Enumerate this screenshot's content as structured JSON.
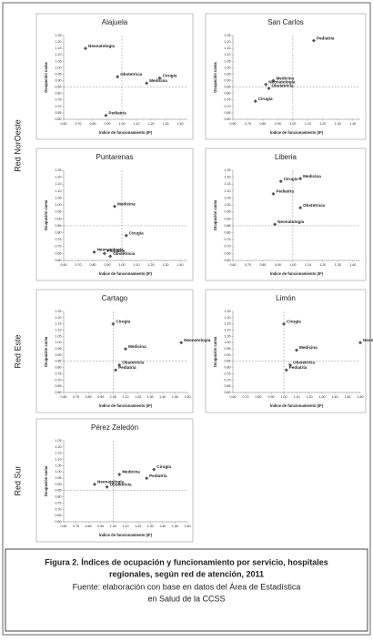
{
  "groups": [
    "Red NorOeste",
    "Red Este",
    "Red Sur"
  ],
  "chart_data": [
    {
      "type": "scatter",
      "title": "Alajuela",
      "x_label": "Índice de funcionamiento (IF)",
      "y_label": "Ocupación cama",
      "xlim": [
        0.6,
        1.45
      ],
      "ylim": [
        0.6,
        1.25
      ],
      "xticks": [
        {
          "value": 0.6,
          "label": "0.60"
        },
        {
          "value": 0.7,
          "label": "0.70"
        },
        {
          "value": 0.8,
          "label": "0.80"
        },
        {
          "value": 0.9,
          "label": "0.90"
        },
        {
          "value": 1.0,
          "label": "1.00"
        },
        {
          "value": 1.1,
          "label": "1.10"
        },
        {
          "value": 1.2,
          "label": "1.20"
        },
        {
          "value": 1.3,
          "label": "1.30"
        },
        {
          "value": 1.4,
          "label": "1.40"
        }
      ],
      "yticks": [
        {
          "value": 0.6,
          "label": "0.60"
        },
        {
          "value": 0.65,
          "label": "0.65"
        },
        {
          "value": 0.7,
          "label": "0.70"
        },
        {
          "value": 0.75,
          "label": "0.75"
        },
        {
          "value": 0.8,
          "label": "0.80"
        },
        {
          "value": 0.85,
          "label": "0.85"
        },
        {
          "value": 0.9,
          "label": "0.90"
        },
        {
          "value": 0.95,
          "label": "0.95"
        },
        {
          "value": 1.0,
          "label": "1.00"
        },
        {
          "value": 1.05,
          "label": "1.05"
        },
        {
          "value": 1.1,
          "label": "1.10"
        },
        {
          "value": 1.15,
          "label": "1.15"
        },
        {
          "value": 1.2,
          "label": "1.20"
        },
        {
          "value": 1.25,
          "label": "1.25"
        }
      ],
      "reference_x": 1.0,
      "reference_y": 0.85,
      "color": "#555555",
      "labels": [
        "Neonatología",
        "Obstetricia",
        "Medicina",
        "Cirugía",
        "Pediatría"
      ],
      "x": [
        0.75,
        0.97,
        1.17,
        1.26,
        0.89
      ],
      "values": [
        1.15,
        0.93,
        0.88,
        0.92,
        0.63
      ]
    },
    {
      "type": "scatter",
      "title": "San Carlos",
      "x_label": "Índice de funcionamiento (IF)",
      "y_label": "Ocupación cama",
      "xlim": [
        0.6,
        1.45
      ],
      "ylim": [
        0.6,
        1.25
      ],
      "xticks": [
        {
          "value": 0.6,
          "label": "0.60"
        },
        {
          "value": 0.7,
          "label": "0.70"
        },
        {
          "value": 0.8,
          "label": "0.80"
        },
        {
          "value": 0.9,
          "label": "0.90"
        },
        {
          "value": 1.0,
          "label": "1.00"
        },
        {
          "value": 1.1,
          "label": "1.10"
        },
        {
          "value": 1.2,
          "label": "1.20"
        },
        {
          "value": 1.3,
          "label": "1.30"
        },
        {
          "value": 1.4,
          "label": "1.40"
        }
      ],
      "yticks": [
        {
          "value": 0.6,
          "label": "0.60"
        },
        {
          "value": 0.65,
          "label": "0.65"
        },
        {
          "value": 0.7,
          "label": "0.70"
        },
        {
          "value": 0.75,
          "label": "0.75"
        },
        {
          "value": 0.8,
          "label": "0.80"
        },
        {
          "value": 0.85,
          "label": "0.85"
        },
        {
          "value": 0.9,
          "label": "0.90"
        },
        {
          "value": 0.95,
          "label": "0.95"
        },
        {
          "value": 1.0,
          "label": "1.00"
        },
        {
          "value": 1.05,
          "label": "1.05"
        },
        {
          "value": 1.1,
          "label": "1.10"
        },
        {
          "value": 1.15,
          "label": "1.15"
        },
        {
          "value": 1.2,
          "label": "1.20"
        },
        {
          "value": 1.25,
          "label": "1.25"
        }
      ],
      "reference_x": 1.0,
      "reference_y": 0.85,
      "color": "#555555",
      "labels": [
        "Pediatría",
        "Medicina",
        "Neonatología",
        "Obstetricia",
        "Cirugía"
      ],
      "x": [
        1.14,
        0.87,
        0.82,
        0.84,
        0.75
      ],
      "values": [
        1.21,
        0.9,
        0.87,
        0.84,
        0.74
      ]
    },
    {
      "type": "scatter",
      "title": "Puntarenas",
      "x_label": "Índice de funcionamiento (IF)",
      "y_label": "Ocupación cama",
      "xlim": [
        0.6,
        1.45
      ],
      "ylim": [
        0.6,
        1.25
      ],
      "xticks": [
        {
          "value": 0.6,
          "label": "0.60"
        },
        {
          "value": 0.7,
          "label": "0.70"
        },
        {
          "value": 0.8,
          "label": "0.80"
        },
        {
          "value": 0.9,
          "label": "0.90"
        },
        {
          "value": 1.0,
          "label": "1.00"
        },
        {
          "value": 1.1,
          "label": "1.10"
        },
        {
          "value": 1.2,
          "label": "1.20"
        },
        {
          "value": 1.3,
          "label": "1.30"
        },
        {
          "value": 1.4,
          "label": "1.40"
        }
      ],
      "yticks": [
        {
          "value": 0.6,
          "label": "0.60"
        },
        {
          "value": 0.65,
          "label": "0.65"
        },
        {
          "value": 0.7,
          "label": "0.70"
        },
        {
          "value": 0.75,
          "label": "0.75"
        },
        {
          "value": 0.8,
          "label": "0.80"
        },
        {
          "value": 0.85,
          "label": "0.85"
        },
        {
          "value": 0.9,
          "label": "0.90"
        },
        {
          "value": 0.95,
          "label": "0.95"
        },
        {
          "value": 1.0,
          "label": "1.00"
        },
        {
          "value": 1.05,
          "label": "1.05"
        },
        {
          "value": 1.1,
          "label": "1.10"
        },
        {
          "value": 1.15,
          "label": "1.15"
        },
        {
          "value": 1.2,
          "label": "1.20"
        },
        {
          "value": 1.25,
          "label": "1.25"
        }
      ],
      "reference_x": 1.0,
      "reference_y": 0.85,
      "color": "#555555",
      "labels": [
        "Medicina",
        "Cirugía",
        "Neonatología",
        "Pediatría",
        "Obstetricia"
      ],
      "x": [
        0.95,
        1.03,
        0.81,
        0.88,
        0.92
      ],
      "values": [
        0.99,
        0.78,
        0.66,
        0.65,
        0.63
      ]
    },
    {
      "type": "scatter",
      "title": "Liberia",
      "x_label": "Índice de funcionamiento (IF)",
      "y_label": "Ocupación cama",
      "xlim": [
        0.6,
        1.45
      ],
      "ylim": [
        0.6,
        1.25
      ],
      "xticks": [
        {
          "value": 0.6,
          "label": "0.60"
        },
        {
          "value": 0.7,
          "label": "0.70"
        },
        {
          "value": 0.8,
          "label": "0.80"
        },
        {
          "value": 0.9,
          "label": "0.90"
        },
        {
          "value": 1.0,
          "label": "1.00"
        },
        {
          "value": 1.1,
          "label": "1.10"
        },
        {
          "value": 1.2,
          "label": "1.20"
        },
        {
          "value": 1.3,
          "label": "1.30"
        },
        {
          "value": 1.4,
          "label": "1.40"
        }
      ],
      "yticks": [
        {
          "value": 0.6,
          "label": "0.60"
        },
        {
          "value": 0.65,
          "label": "0.65"
        },
        {
          "value": 0.7,
          "label": "0.70"
        },
        {
          "value": 0.75,
          "label": "0.75"
        },
        {
          "value": 0.8,
          "label": "0.80"
        },
        {
          "value": 0.85,
          "label": "0.85"
        },
        {
          "value": 0.9,
          "label": "0.90"
        },
        {
          "value": 0.95,
          "label": "0.95"
        },
        {
          "value": 1.0,
          "label": "1.00"
        },
        {
          "value": 1.05,
          "label": "1.05"
        },
        {
          "value": 1.1,
          "label": "1.10"
        },
        {
          "value": 1.15,
          "label": "1.15"
        },
        {
          "value": 1.2,
          "label": "1.20"
        },
        {
          "value": 1.25,
          "label": "1.25"
        }
      ],
      "reference_x": 1.0,
      "reference_y": 0.85,
      "color": "#555555",
      "labels": [
        "Medicina",
        "Cirugía",
        "Pediatría",
        "Obstetricia",
        "Neonatología"
      ],
      "x": [
        1.05,
        0.92,
        0.87,
        1.05,
        0.88
      ],
      "values": [
        1.19,
        1.17,
        1.08,
        0.98,
        0.86
      ]
    },
    {
      "type": "scatter",
      "title": "Cartago",
      "x_label": "Índice de funcionamiento (IF)",
      "y_label": "Ocupación cama",
      "xlim": [
        0.6,
        1.6
      ],
      "ylim": [
        0.6,
        1.25
      ],
      "xticks": [
        {
          "value": 0.6,
          "label": "0.60"
        },
        {
          "value": 0.7,
          "label": "0.70"
        },
        {
          "value": 0.8,
          "label": "0.80"
        },
        {
          "value": 0.9,
          "label": "0.90"
        },
        {
          "value": 1.0,
          "label": "1.00"
        },
        {
          "value": 1.1,
          "label": "1.10"
        },
        {
          "value": 1.2,
          "label": "1.20"
        },
        {
          "value": 1.3,
          "label": "1.30"
        },
        {
          "value": 1.4,
          "label": "1.40"
        },
        {
          "value": 1.5,
          "label": "1.50"
        },
        {
          "value": 1.6,
          "label": "1.60"
        }
      ],
      "yticks": [
        {
          "value": 0.6,
          "label": "0.60"
        },
        {
          "value": 0.65,
          "label": "0.65"
        },
        {
          "value": 0.7,
          "label": "0.70"
        },
        {
          "value": 0.75,
          "label": "0.75"
        },
        {
          "value": 0.8,
          "label": "0.80"
        },
        {
          "value": 0.85,
          "label": "0.85"
        },
        {
          "value": 0.9,
          "label": "0.90"
        },
        {
          "value": 0.95,
          "label": "0.95"
        },
        {
          "value": 1.0,
          "label": "1.00"
        },
        {
          "value": 1.05,
          "label": "1.05"
        },
        {
          "value": 1.1,
          "label": "1.10"
        },
        {
          "value": 1.15,
          "label": "1.15"
        },
        {
          "value": 1.2,
          "label": "1.20"
        },
        {
          "value": 1.25,
          "label": "1.25"
        }
      ],
      "reference_x": 1.0,
      "reference_y": 0.85,
      "color": "#555555",
      "labels": [
        "Cirugía",
        "Neonatología",
        "Medicina",
        "Obstetricia",
        "Pediatría"
      ],
      "x": [
        1.0,
        1.55,
        1.1,
        1.05,
        1.02
      ],
      "values": [
        1.15,
        1.0,
        0.95,
        0.82,
        0.78
      ]
    },
    {
      "type": "scatter",
      "title": "Limón",
      "x_label": "Índice de funcionamiento (IF)",
      "y_label": "Ocupación cama",
      "xlim": [
        0.6,
        1.6
      ],
      "ylim": [
        0.6,
        1.25
      ],
      "xticks": [
        {
          "value": 0.6,
          "label": "0.60"
        },
        {
          "value": 0.7,
          "label": "0.70"
        },
        {
          "value": 0.8,
          "label": "0.80"
        },
        {
          "value": 0.9,
          "label": "0.90"
        },
        {
          "value": 1.0,
          "label": "1.00"
        },
        {
          "value": 1.1,
          "label": "1.10"
        },
        {
          "value": 1.2,
          "label": "1.20"
        },
        {
          "value": 1.3,
          "label": "1.30"
        },
        {
          "value": 1.4,
          "label": "1.40"
        },
        {
          "value": 1.5,
          "label": "1.50"
        },
        {
          "value": 1.6,
          "label": "1.60"
        }
      ],
      "yticks": [
        {
          "value": 0.6,
          "label": "0.60"
        },
        {
          "value": 0.65,
          "label": "0.65"
        },
        {
          "value": 0.7,
          "label": "0.70"
        },
        {
          "value": 0.75,
          "label": "0.75"
        },
        {
          "value": 0.8,
          "label": "0.80"
        },
        {
          "value": 0.85,
          "label": "0.85"
        },
        {
          "value": 0.9,
          "label": "0.90"
        },
        {
          "value": 0.95,
          "label": "0.95"
        },
        {
          "value": 1.0,
          "label": "1.00"
        },
        {
          "value": 1.05,
          "label": "1.05"
        },
        {
          "value": 1.1,
          "label": "1.10"
        },
        {
          "value": 1.15,
          "label": "1.15"
        },
        {
          "value": 1.2,
          "label": "1.20"
        },
        {
          "value": 1.25,
          "label": "1.25"
        }
      ],
      "reference_x": 1.0,
      "reference_y": 0.85,
      "color": "#555555",
      "labels": [
        "Cirugía",
        "Neonatología",
        "Medicina",
        "Obstetricia",
        "Pediatría"
      ],
      "x": [
        1.0,
        1.6,
        1.1,
        1.05,
        1.02
      ],
      "values": [
        1.15,
        1.0,
        0.94,
        0.82,
        0.78
      ]
    },
    {
      "type": "scatter",
      "title": "Pérez Zeledón",
      "x_label": "Índice de funcionamiento (IF)",
      "y_label": "Ocupación cama",
      "xlim": [
        0.6,
        1.6
      ],
      "ylim": [
        0.6,
        1.25
      ],
      "xticks": [
        {
          "value": 0.6,
          "label": "0.60"
        },
        {
          "value": 0.7,
          "label": "0.70"
        },
        {
          "value": 0.8,
          "label": "0.80"
        },
        {
          "value": 0.9,
          "label": "0.90"
        },
        {
          "value": 1.0,
          "label": "1.00"
        },
        {
          "value": 1.1,
          "label": "1.10"
        },
        {
          "value": 1.2,
          "label": "1.20"
        },
        {
          "value": 1.3,
          "label": "1.30"
        },
        {
          "value": 1.4,
          "label": "1.40"
        },
        {
          "value": 1.5,
          "label": "1.50"
        },
        {
          "value": 1.6,
          "label": "1.60"
        }
      ],
      "yticks": [
        {
          "value": 0.6,
          "label": "0.60"
        },
        {
          "value": 0.65,
          "label": "0.65"
        },
        {
          "value": 0.7,
          "label": "0.70"
        },
        {
          "value": 0.75,
          "label": "0.75"
        },
        {
          "value": 0.8,
          "label": "0.80"
        },
        {
          "value": 0.85,
          "label": "0.85"
        },
        {
          "value": 0.9,
          "label": "0.90"
        },
        {
          "value": 0.95,
          "label": "0.95"
        },
        {
          "value": 1.0,
          "label": "1.00"
        },
        {
          "value": 1.05,
          "label": "1.05"
        },
        {
          "value": 1.1,
          "label": "1.10"
        },
        {
          "value": 1.15,
          "label": "1.15"
        },
        {
          "value": 1.2,
          "label": "1.20"
        },
        {
          "value": 1.25,
          "label": "1.25"
        }
      ],
      "reference_x": 1.0,
      "reference_y": 0.85,
      "color": "#555555",
      "labels": [
        "Cirugía",
        "Medicina",
        "Pediatría",
        "Neonatología",
        "Obstetricia"
      ],
      "x": [
        1.33,
        1.05,
        1.27,
        0.85,
        0.95
      ],
      "values": [
        1.02,
        0.98,
        0.95,
        0.9,
        0.88
      ]
    }
  ],
  "caption": {
    "title_lines": [
      "Figura 2. Índices de ocupación y funcionamiento por servicio, hospitales",
      "regionales, según red de atención, 2011"
    ],
    "source_lines": [
      "Fuente: elaboración con base en datos del Área de Estadística",
      "en Salud de la CCSS"
    ]
  }
}
